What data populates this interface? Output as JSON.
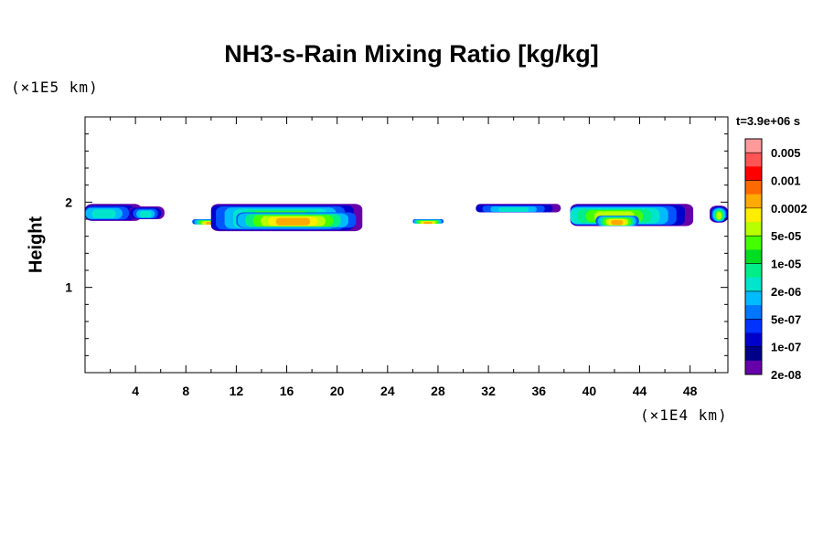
{
  "chart_data": {
    "type": "heatmap",
    "title": "NH3-s-Rain Mixing Ratio [kg/kg]",
    "ylabel": "Height",
    "xlabel": "",
    "x_unit": "(×1E4 km)",
    "y_unit": "(×1E5 km)",
    "time_label": "t=3.9e+06 s",
    "x_ticks": [
      "4",
      "8",
      "12",
      "16",
      "20",
      "24",
      "28",
      "32",
      "36",
      "40",
      "44",
      "48"
    ],
    "y_ticks": [
      "1",
      "2"
    ],
    "xlim": [
      0,
      51
    ],
    "ylim": [
      0,
      3
    ],
    "colorbar": {
      "colors": [
        "#ff9a9a",
        "#ff5555",
        "#ff0000",
        "#ff6a00",
        "#ffaa00",
        "#ffee00",
        "#b8ff00",
        "#44ff00",
        "#00dd22",
        "#00ee88",
        "#00e5cc",
        "#00bbff",
        "#0077ff",
        "#0033ff",
        "#0000cc",
        "#000088",
        "#6600aa"
      ],
      "labels": [
        "0.005",
        "0.001",
        "0.0002",
        "5e-05",
        "1e-05",
        "2e-06",
        "5e-07",
        "1e-07",
        "2e-08"
      ]
    },
    "cells": [
      {
        "x0": 0,
        "x1": 6,
        "y0": 1.78,
        "y1": 1.98,
        "level": "low",
        "core": 1.5
      },
      {
        "x0": 3.5,
        "x1": 6.5,
        "y0": 1.8,
        "y1": 1.95,
        "level": "low",
        "core": 4.8
      },
      {
        "x0": 8.5,
        "x1": 11.5,
        "y0": 1.74,
        "y1": 1.8,
        "level": "high",
        "core": 10
      },
      {
        "x0": 10,
        "x1": 23,
        "y0": 1.66,
        "y1": 1.98,
        "level": "mid",
        "core": 15.5
      },
      {
        "x0": 12,
        "x1": 22,
        "y0": 1.7,
        "y1": 1.88,
        "level": "high",
        "core": 16.5
      },
      {
        "x0": 26,
        "x1": 28.5,
        "y0": 1.75,
        "y1": 1.8,
        "level": "high",
        "core": 27.2
      },
      {
        "x0": 31,
        "x1": 38.5,
        "y0": 1.88,
        "y1": 1.98,
        "level": "low",
        "core": 34
      },
      {
        "x0": 38.5,
        "x1": 51,
        "y0": 1.72,
        "y1": 1.98,
        "level": "mid",
        "core": 42
      },
      {
        "x0": 40.5,
        "x1": 44,
        "y0": 1.72,
        "y1": 1.84,
        "level": "high",
        "core": 42.2
      },
      {
        "x0": 49.5,
        "x1": 51,
        "y0": 1.76,
        "y1": 1.96,
        "level": "mid",
        "core": 50.3
      }
    ]
  }
}
